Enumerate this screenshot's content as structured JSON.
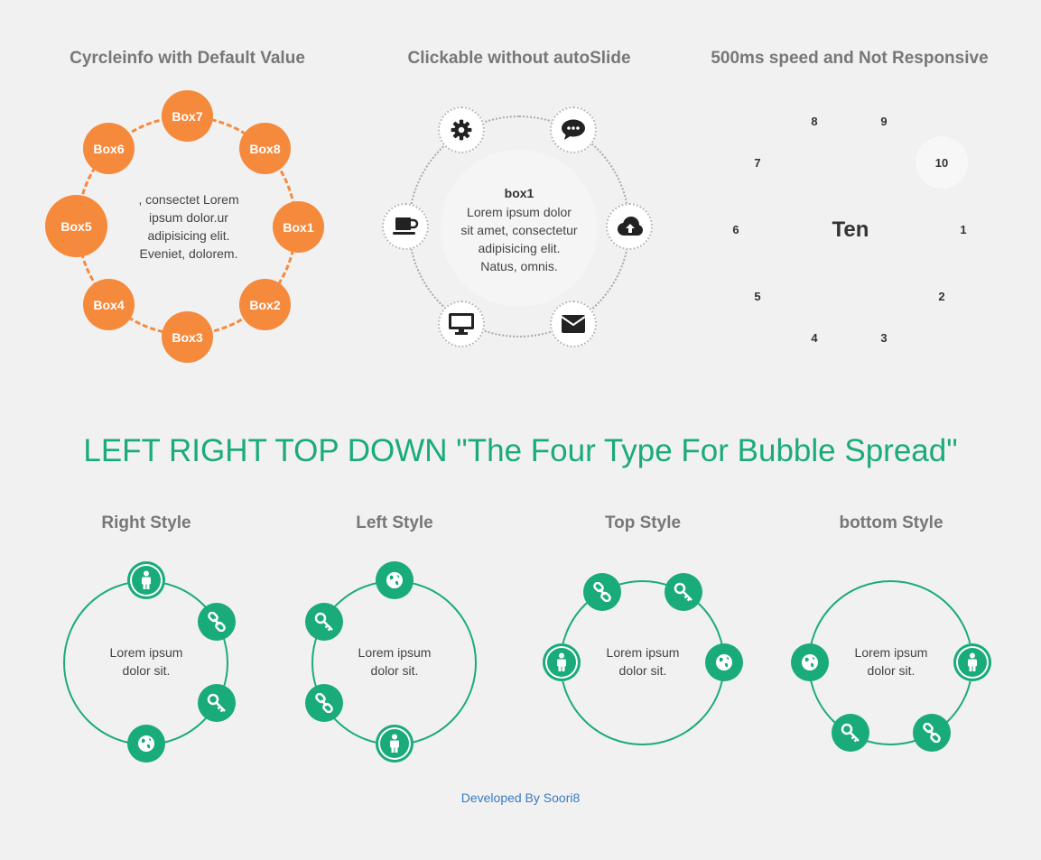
{
  "demos": [
    {
      "title": "Cyrcleinfo with Default Value",
      "center_text": ", consectet Lorem ipsum dolor.ur adipisicing elit. Eveniet, dolorem.",
      "boxes": [
        "Box7",
        "Box8",
        "Box1",
        "Box2",
        "Box3",
        "Box4",
        "Box5",
        "Box6"
      ],
      "accent": "#f58a3d"
    },
    {
      "title": "Clickable without autoSlide",
      "center_title": "box1",
      "center_text": "Lorem ipsum dolor sit amet, consectetur adipisicing elit. Natus, omnis.",
      "icons": [
        "gear-icon",
        "chat-icon",
        "cloud-upload-icon",
        "envelope-icon",
        "monitor-icon",
        "coffee-icon"
      ]
    },
    {
      "title": "500ms speed and Not Responsive",
      "center_text": "Ten",
      "numbers": [
        "8",
        "9",
        "10",
        "1",
        "2",
        "3",
        "4",
        "5",
        "6",
        "7"
      ],
      "active": "10"
    }
  ],
  "heading": "LEFT RIGHT TOP DOWN \"The Four Type For Bubble Spread\"",
  "styles": [
    {
      "title": "Right Style",
      "center_text": "Lorem ipsum dolor sit.",
      "icons": [
        "person-icon",
        "link-icon",
        "key-icon",
        "globe-icon"
      ]
    },
    {
      "title": "Left Style",
      "center_text": "Lorem ipsum dolor sit.",
      "icons": [
        "globe-icon",
        "key-icon",
        "link-icon",
        "person-icon"
      ]
    },
    {
      "title": "Top Style",
      "center_text": "Lorem ipsum dolor sit.",
      "icons": [
        "link-icon",
        "key-icon",
        "globe-icon",
        "person-icon"
      ]
    },
    {
      "title": "bottom Style",
      "center_text": "Lorem ipsum dolor sit.",
      "icons": [
        "globe-icon",
        "person-icon",
        "link-icon",
        "key-icon"
      ]
    }
  ],
  "footer": "Developed By Soori8",
  "colors": {
    "orange": "#f58a3d",
    "green": "#1aab7a",
    "link": "#3b7bbf"
  }
}
